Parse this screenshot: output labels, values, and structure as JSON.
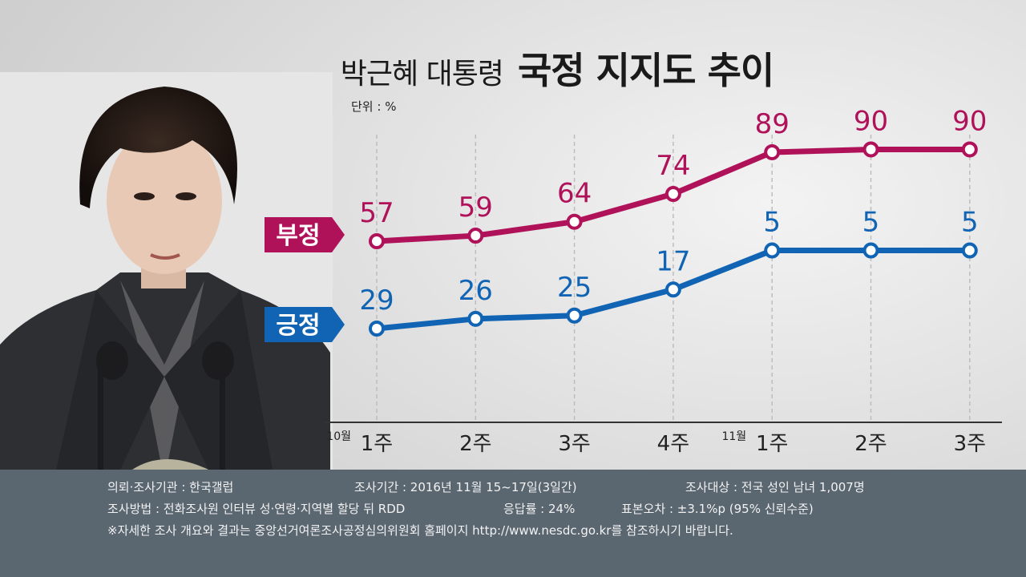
{
  "title": {
    "prefix": "박근혜 대통령",
    "main": "국정 지지도 추이"
  },
  "unit": "단위 : %",
  "chart_data": {
    "type": "line",
    "x": [
      "1주",
      "2주",
      "3주",
      "4주",
      "1주",
      "2주",
      "3주"
    ],
    "month_labels": [
      {
        "index": 0,
        "label": "10월"
      },
      {
        "index": 4,
        "label": "11월"
      }
    ],
    "series": [
      {
        "name": "부정",
        "values": [
          57,
          59,
          64,
          74,
          89,
          90,
          90
        ],
        "color": "#b0125a"
      },
      {
        "name": "긍정",
        "values": [
          29,
          26,
          25,
          17,
          5,
          5,
          5
        ],
        "color": "#1164b4"
      }
    ],
    "grid": "vertical dashed",
    "legend": "left, labels at line start"
  },
  "footer": {
    "agency": "의뢰·조사기관 : 한국갤럽",
    "period": "조사기간 : 2016년 11월 15~17일(3일간)",
    "target": "조사대상 : 전국 성인 남녀 1,007명",
    "method": "조사방법 : 전화조사원 인터뷰 성·연령·지역별 할당 뒤 RDD",
    "response": "응답률 : 24%",
    "error": "표본오차 : ±3.1%p (95% 신뢰수준)",
    "note": "※자세한 조사 개요와 결과는 중앙선거여론조사공정심의위원회 홈페이지 http://www.nesdc.go.kr를 참조하시기 바랍니다."
  }
}
